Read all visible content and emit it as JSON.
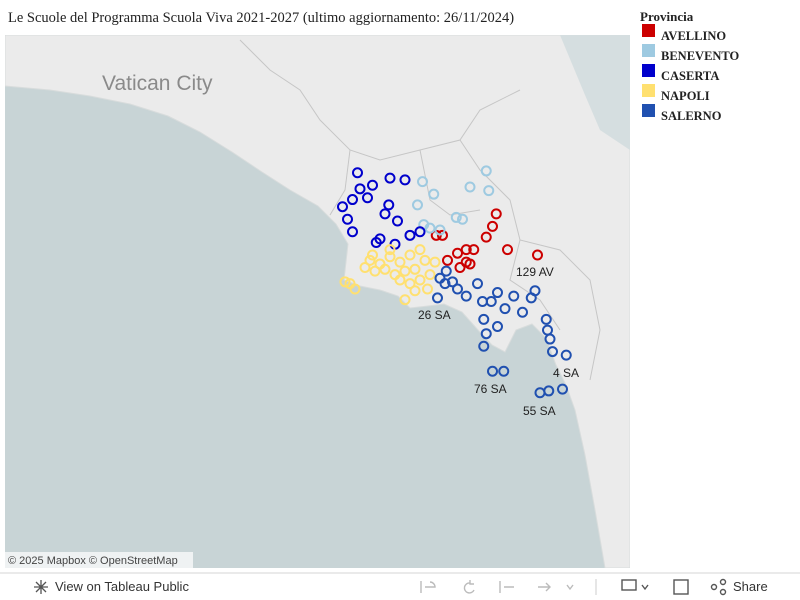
{
  "chart_data": {
    "type": "scatter",
    "title": "Le Scuole del Programma Scuola Viva 2021-2027 (ultimo aggiornamento: 26/11/2024)",
    "legend_title": "Provincia",
    "legend": "right",
    "map_label": "Vatican City",
    "attribution": "© 2025 Mapbox © OpenStreetMap",
    "annotations": [
      "129 AV",
      "26 SA",
      "4 SA",
      "76 SA",
      "55 SA"
    ],
    "xlim": [
      11.13,
      16.13
    ],
    "ylim": [
      39.18,
      42.16
    ],
    "series": [
      {
        "name": "AVELLINO",
        "color": "#cc0000",
        "x": [
          15.06,
          15.03,
          14.98,
          15.15,
          15.39,
          14.58,
          14.63,
          14.75,
          14.82,
          14.88,
          14.82,
          14.85,
          14.77,
          14.67
        ],
        "values": [
          41.16,
          41.09,
          41.03,
          40.96,
          40.93,
          41.04,
          41.04,
          40.94,
          40.96,
          40.96,
          40.89,
          40.88,
          40.86,
          40.9
        ]
      },
      {
        "name": "BENEVENTO",
        "color": "#9ecae1",
        "x": [
          14.98,
          14.85,
          15.0,
          14.47,
          14.56,
          14.43,
          14.74,
          14.79,
          14.48,
          14.61,
          14.53
        ],
        "values": [
          41.4,
          41.31,
          41.29,
          41.34,
          41.27,
          41.21,
          41.14,
          41.13,
          41.1,
          41.07,
          41.08
        ]
      },
      {
        "name": "CASERTA",
        "color": "#0000cc",
        "x": [
          13.95,
          14.07,
          14.33,
          14.21,
          13.97,
          13.91,
          13.83,
          14.03,
          14.2,
          13.87,
          14.17,
          14.27,
          13.91,
          14.13,
          14.25,
          14.37,
          14.45,
          14.1
        ],
        "values": [
          41.39,
          41.32,
          41.35,
          41.36,
          41.3,
          41.24,
          41.2,
          41.25,
          41.21,
          41.13,
          41.16,
          41.12,
          41.06,
          41.02,
          40.99,
          41.04,
          41.06,
          41.0
        ]
      },
      {
        "name": "NAPOLI",
        "color": "#ffe070",
        "x": [
          14.05,
          14.13,
          14.21,
          14.29,
          14.37,
          14.45,
          14.49,
          14.41,
          14.33,
          14.25,
          14.17,
          14.09,
          14.01,
          14.29,
          14.37,
          14.45,
          14.53,
          14.41,
          14.33,
          13.89,
          13.85,
          13.93,
          14.57,
          14.51,
          14.21,
          14.07
        ],
        "values": [
          40.9,
          40.88,
          40.92,
          40.89,
          40.93,
          40.96,
          40.9,
          40.85,
          40.84,
          40.82,
          40.85,
          40.84,
          40.86,
          40.79,
          40.77,
          40.79,
          40.82,
          40.73,
          40.68,
          40.77,
          40.78,
          40.74,
          40.89,
          40.74,
          40.96,
          40.93
        ]
      },
      {
        "name": "SALERNO",
        "color": "#2050b0",
        "x": [
          14.61,
          14.66,
          14.71,
          14.75,
          14.65,
          14.59,
          14.82,
          14.91,
          14.95,
          15.02,
          15.07,
          15.2,
          15.34,
          15.37,
          15.13,
          15.27,
          14.96,
          15.07,
          14.98,
          14.96,
          15.46,
          15.47,
          15.49,
          15.51,
          15.62,
          15.03,
          15.12,
          15.41,
          15.48,
          15.59
        ],
        "values": [
          40.8,
          40.84,
          40.78,
          40.74,
          40.77,
          40.69,
          40.7,
          40.77,
          40.67,
          40.67,
          40.72,
          40.7,
          40.69,
          40.73,
          40.63,
          40.61,
          40.57,
          40.53,
          40.49,
          40.42,
          40.57,
          40.51,
          40.46,
          40.39,
          40.37,
          40.28,
          40.28,
          40.16,
          40.17,
          40.18
        ]
      }
    ]
  },
  "toolbar": {
    "view_link": "View on Tableau Public",
    "share": "Share"
  }
}
